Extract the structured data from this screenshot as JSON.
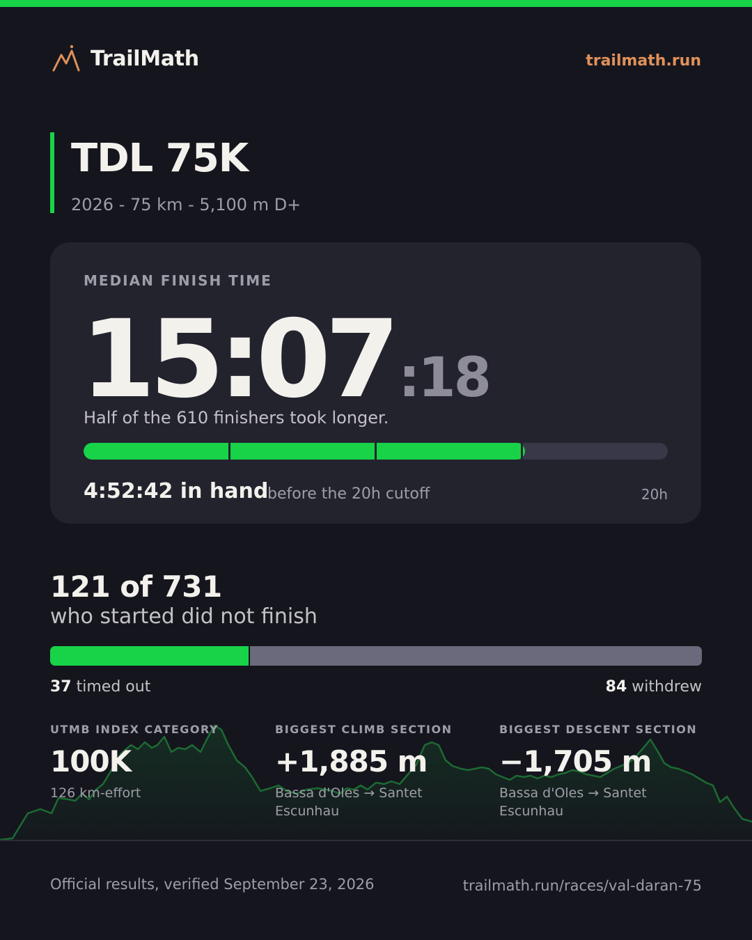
{
  "brand": {
    "name": "TrailMath",
    "url": "trailmath.run",
    "accent": "#18d348",
    "link_color": "#e0915a"
  },
  "race": {
    "title": "TDL 75K",
    "subtitle": "2026 - 75 km - 5,100 m D+"
  },
  "median": {
    "label": "MEDIAN FINISH TIME",
    "time_hm": "15:07",
    "time_sec": ":18",
    "note": "Half of the 610 finishers took longer.",
    "progress_fraction": 0.756,
    "hours_marked": [
      5,
      10,
      15
    ],
    "in_hand": "4:52:42 in hand",
    "in_hand_note": "before the 20h cutoff",
    "cutoff_label": "20h"
  },
  "dnf": {
    "count": "121 of 731",
    "label": "who started did not finish",
    "timed_out_count": "37",
    "timed_out_label": "timed out",
    "withdrew_count": "84",
    "withdrew_label": "withdrew",
    "timed_out_value": 37,
    "withdrew_value": 84
  },
  "stats": [
    {
      "label": "UTMB INDEX CATEGORY",
      "value": "100K",
      "sub": "126 km-effort"
    },
    {
      "label": "BIGGEST CLIMB SECTION",
      "value": "+1,885 m",
      "sub": "Bassa d'Oles → Santet Escunhau"
    },
    {
      "label": "BIGGEST DESCENT SECTION",
      "value": "−1,705 m",
      "sub": "Bassa d'Oles → Santet Escunhau"
    }
  ],
  "footer": {
    "verified": "Official results, verified September 23, 2026",
    "link": "trailmath.run/races/val-daran-75"
  },
  "icons": {
    "logo": "mountain-peak-icon"
  }
}
